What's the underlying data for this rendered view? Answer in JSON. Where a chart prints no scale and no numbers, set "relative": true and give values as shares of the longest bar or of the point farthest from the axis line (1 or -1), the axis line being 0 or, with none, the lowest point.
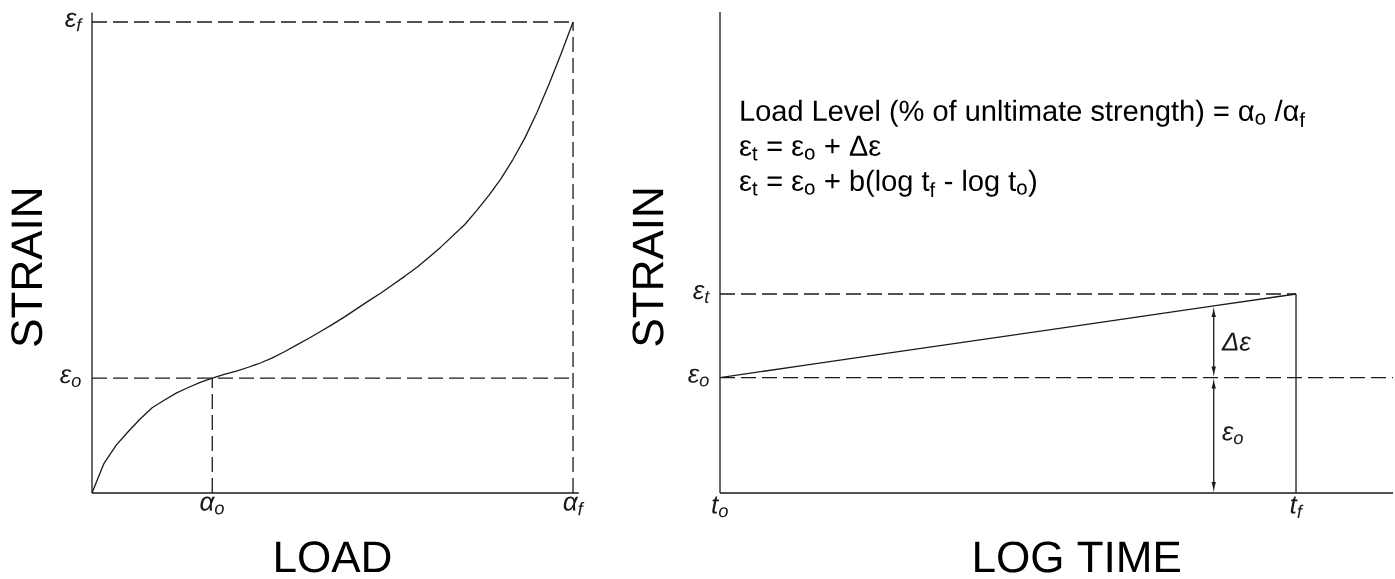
{
  "chart_data": [
    {
      "type": "line",
      "relative": true,
      "xlabel": "LOAD",
      "ylabel": "STRAIN",
      "categories": [
        null,
        null,
        null,
        null,
        null,
        null,
        null,
        null,
        null,
        null,
        "α$_{o}$",
        null,
        null,
        null,
        null,
        null,
        null,
        null,
        null,
        null,
        null,
        null,
        null,
        null,
        null,
        null,
        null,
        null,
        null,
        null,
        null,
        null,
        null,
        null,
        null,
        null,
        null,
        null,
        null,
        null,
        "α$_{f}$"
      ],
      "series": [
        {
          "color": "#1a1a1a",
          "values": [
            0,
            0.063,
            0.101,
            0.13,
            0.157,
            0.181,
            0.197,
            0.212,
            0.224,
            0.235,
            0.244,
            0.252,
            0.259,
            0.267,
            0.276,
            0.287,
            0.3,
            0.314,
            0.328,
            0.343,
            0.358,
            0.374,
            0.391,
            0.408,
            0.424,
            0.442,
            0.46,
            0.479,
            0.5,
            0.522,
            0.546,
            0.57,
            0.6,
            0.632,
            0.667,
            0.708,
            0.754,
            0.808,
            0.868,
            0.932,
            1
          ]
        },
        {
          "name": "ε$_{o}$",
          "color": "#1a1a1a",
          "line_style": "dashed",
          "values": [
            0.244,
            0.244,
            0.244,
            0.244,
            0.244,
            0.244,
            0.244,
            0.244,
            0.244,
            0.244,
            0.244,
            0.244,
            0.244,
            0.244,
            0.244,
            0.244,
            0.244,
            0.244,
            0.244,
            0.244,
            0.244,
            0.244,
            0.244,
            0.244,
            0.244,
            0.244,
            0.244,
            0.244,
            0.244,
            0.244,
            0.244,
            0.244,
            0.244,
            0.244,
            0.244,
            0.244,
            0.244,
            0.244,
            0.244,
            0.244,
            0.244
          ]
        },
        {
          "name": "ε$_{f}$",
          "color": "#1a1a1a",
          "line_style": "dashed",
          "values": [
            1,
            1,
            1,
            1,
            1,
            1,
            1,
            1,
            1,
            1,
            1,
            1,
            1,
            1,
            1,
            1,
            1,
            1,
            1,
            1,
            1,
            1,
            1,
            1,
            1,
            1,
            1,
            1,
            1,
            1,
            1,
            1,
            1,
            1,
            1,
            1,
            1,
            1,
            1,
            1,
            1
          ]
        },
        {
          "color": "#1a1a1a",
          "line_style": "dashed",
          "x": [
            "α$_{o}$",
            "α$_{o}$"
          ],
          "values": [
            0,
            0.244
          ]
        },
        {
          "color": "#1a1a1a",
          "line_style": "dashed",
          "x": [
            "α$_{f}$",
            "α$_{f}$"
          ],
          "values": [
            0,
            1
          ]
        }
      ]
    },
    {
      "type": "line",
      "relative": true,
      "xlabel": "LOG TIME",
      "ylabel": "STRAIN",
      "categories": [
        "t$_{o}$",
        null,
        null,
        null,
        null,
        null,
        null,
        "t$_{f}$"
      ],
      "series": [
        {
          "color": "#1a1a1a",
          "values": [
            0.58,
            0.64,
            0.7,
            0.76,
            0.82,
            0.88,
            0.94,
            1
          ]
        },
        {
          "name": "ε$_{t}$",
          "color": "#1a1a1a",
          "line_style": "dashed",
          "values": [
            1,
            1,
            1,
            1,
            1,
            1,
            1,
            1
          ]
        },
        {
          "color": "#1a1a1a",
          "x": [
            "t$_{f}$",
            "t$_{f}$"
          ],
          "values": [
            1,
            0
          ]
        }
      ],
      "ref_lines": [
        {
          "axis": "y",
          "value": 0.58,
          "label": "ε$_{o}$",
          "color": "#1a1a1a",
          "line_style": "dashed"
        }
      ],
      "annotations": [
        "Load Level (% of unltimate strength) = α$_{o}$ /α$_{f}$",
        "ε$_{t}$ = ε$_{o}$ + Δε",
        "ε$_{t}$ = ε$_{o}$ + b(log t$_{f}$ - log t$_{o}$)",
        "Δε",
        "ε$_{o}$"
      ]
    }
  ]
}
